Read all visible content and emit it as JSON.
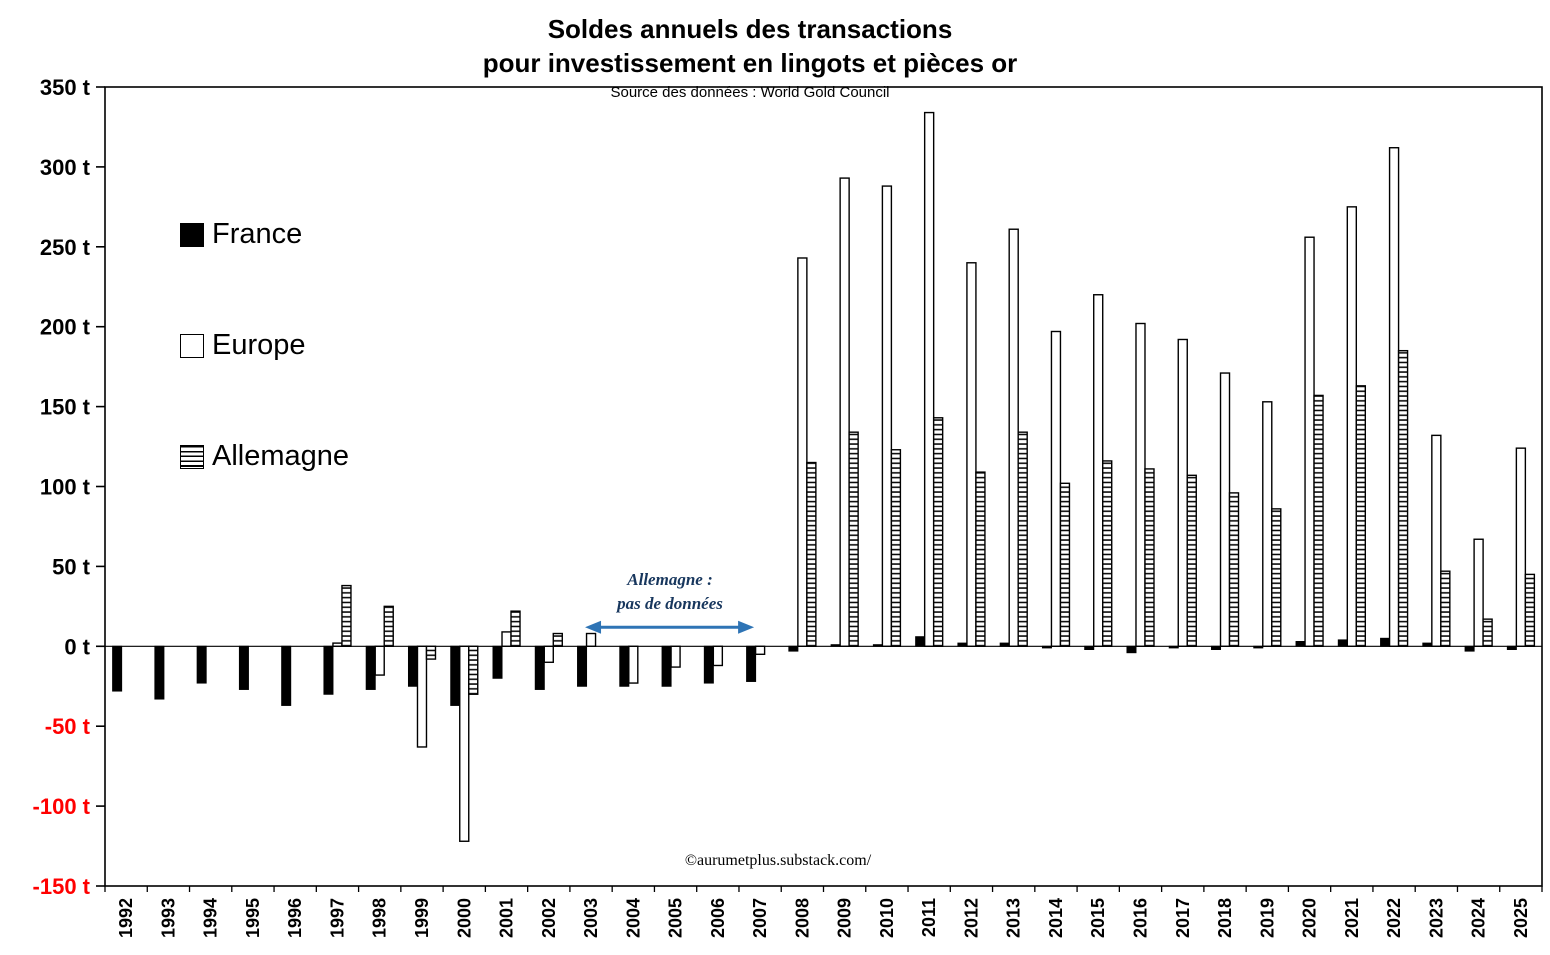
{
  "title": {
    "line1": "Soldes annuels des transactions",
    "line2": "pour investissement en lingots et pièces or",
    "source": "Source des données :  World Gold Council"
  },
  "watermark": "©aurumetplus.substack.com/",
  "annotation": {
    "line1": "Allemagne :",
    "line2": "pas de données",
    "from_year": "2003",
    "to_year": "2007",
    "text_color": "#17365d",
    "arrow_color": "#2e74b5"
  },
  "axis": {
    "y_min": -150,
    "y_max": 350,
    "y_step": 50,
    "y_suffix": " t",
    "negative_label_color": "#ff0000",
    "positive_label_color": "#000000"
  },
  "chart_data": {
    "type": "bar",
    "title": "Soldes annuels des transactions pour investissement en lingots et pièces or",
    "ylabel": "tonnes",
    "ylim": [
      -150,
      350
    ],
    "grid": false,
    "legend_position": "upper-left-inside",
    "categories": [
      "1992",
      "1993",
      "1994",
      "1995",
      "1996",
      "1997",
      "1998",
      "1999",
      "2000",
      "2001",
      "2002",
      "2003",
      "2004",
      "2005",
      "2006",
      "2007",
      "2008",
      "2009",
      "2010",
      "2011",
      "2012",
      "2013",
      "2014",
      "2015",
      "2016",
      "2017",
      "2018",
      "2019",
      "2020",
      "2021",
      "2022",
      "2023",
      "2024",
      "2025"
    ],
    "series": [
      {
        "name": "France",
        "style": "solid-black",
        "values": [
          -28,
          -33,
          -23,
          -27,
          -37,
          -30,
          -27,
          -25,
          -37,
          -20,
          -27,
          -25,
          -25,
          -25,
          -23,
          -22,
          -3,
          1,
          1,
          6,
          2,
          2,
          -1,
          -2,
          -4,
          -1,
          -2,
          -1,
          3,
          4,
          5,
          2,
          -3,
          -2
        ]
      },
      {
        "name": "Europe",
        "style": "outline-white",
        "values": [
          null,
          null,
          null,
          null,
          null,
          2,
          -18,
          -63,
          -122,
          9,
          -10,
          8,
          -23,
          -13,
          -12,
          -5,
          243,
          293,
          288,
          334,
          240,
          261,
          197,
          220,
          202,
          192,
          171,
          153,
          256,
          275,
          312,
          132,
          67,
          124
        ]
      },
      {
        "name": "Allemagne",
        "style": "striped",
        "values": [
          null,
          null,
          null,
          null,
          null,
          38,
          25,
          -8,
          -30,
          22,
          8,
          null,
          null,
          null,
          null,
          null,
          115,
          134,
          123,
          143,
          109,
          134,
          102,
          116,
          111,
          107,
          96,
          86,
          157,
          163,
          185,
          47,
          17,
          45
        ]
      }
    ]
  }
}
